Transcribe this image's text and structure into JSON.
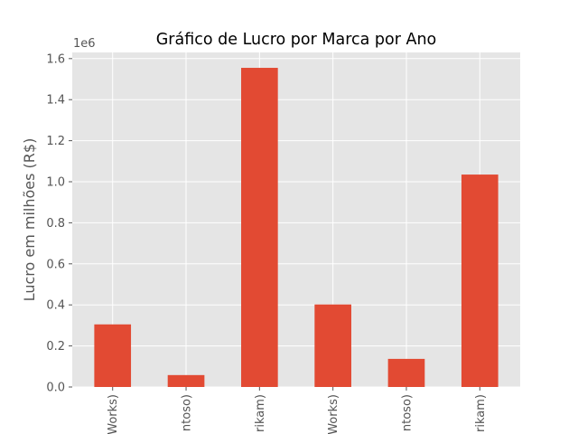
{
  "chart_data": {
    "type": "bar",
    "title": "Gráfico de Lucro por Marca por Ano",
    "ylabel": "Lucro em milhões (R$)",
    "y_offset_label": "1e6",
    "ylim": [
      0,
      1.63
    ],
    "y_ticks": [
      "0.0",
      "0.2",
      "0.4",
      "0.6",
      "0.8",
      "1.0",
      "1.2",
      "1.4",
      "1.6"
    ],
    "categories": [
      "Works)",
      "ntoso)",
      "rikam)",
      "Works)",
      "ntoso)",
      "rikam)"
    ],
    "values": [
      0.305,
      0.058,
      1.555,
      0.402,
      0.137,
      1.035
    ],
    "grid": true,
    "legend": "none",
    "bar_color": "#e24a33",
    "background_color": "#e5e5e5",
    "grid_color": "#ffffff"
  }
}
